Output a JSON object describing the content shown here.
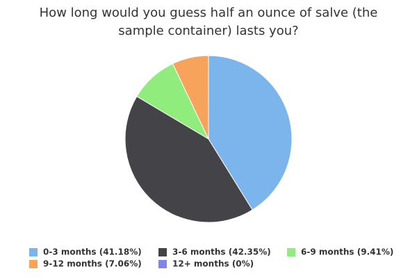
{
  "chart_data": {
    "type": "pie",
    "title": "How long would you guess half an ounce of salve (the sample container) lasts you?",
    "categories": [
      "0-3 months (41.18%)",
      "3-6 months (42.35%)",
      "6-9 months (9.41%)",
      "9-12 months (7.06%)",
      "12+ months (0%)"
    ],
    "values": [
      41.18,
      42.35,
      9.41,
      7.06,
      0
    ],
    "colors": [
      "#7cb5ec",
      "#434348",
      "#90ed7d",
      "#f7a35c",
      "#8085e9"
    ],
    "legend": "bottom"
  }
}
